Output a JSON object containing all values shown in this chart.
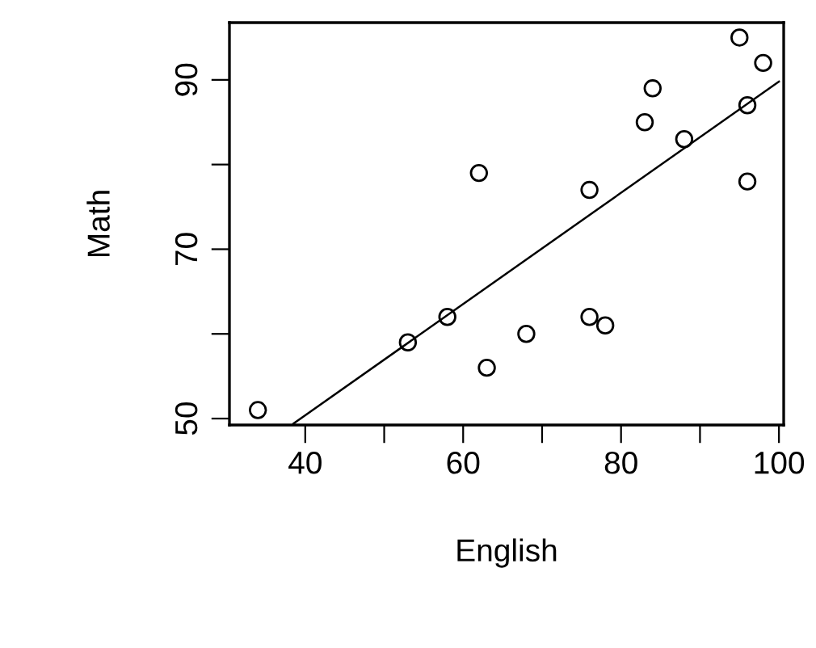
{
  "chart_data": {
    "type": "scatter",
    "xlabel": "English",
    "ylabel": "Math",
    "xlim": [
      30.4,
      100.6
    ],
    "ylim": [
      49.24,
      96.76
    ],
    "xticks": [
      40,
      {
        "value": 50,
        "label": null
      },
      60,
      {
        "value": 70,
        "label": null
      },
      80,
      {
        "value": 90,
        "label": null
      },
      100
    ],
    "yticks": [
      50,
      {
        "value": 60,
        "label": null
      },
      70,
      {
        "value": 80,
        "label": null
      },
      90
    ],
    "grid": false,
    "legend": false,
    "series": [
      {
        "marker": "circle",
        "color": "#000000",
        "x": [
          34,
          53,
          58,
          62,
          63,
          68,
          76,
          76,
          78,
          83,
          84,
          88,
          95,
          98,
          96,
          96
        ],
        "values": [
          51,
          59,
          62,
          79,
          56,
          60,
          77,
          62,
          61,
          85,
          89,
          83,
          95,
          92,
          87,
          78
        ]
      },
      {
        "type": "line",
        "color": "#000000",
        "x": [
          38.5,
          100
        ],
        "values": [
          49.4,
          89.8
        ],
        "line_style": "solid"
      }
    ]
  }
}
